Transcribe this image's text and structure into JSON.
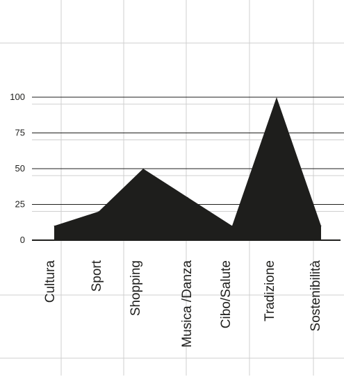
{
  "chart_data": {
    "type": "area",
    "categories": [
      "Cultura",
      "Sport",
      "Shopping",
      "Musica /Danza",
      "Cibo/Salute",
      "Tradizione",
      "Sostenibilità"
    ],
    "values": [
      10,
      20,
      50,
      30,
      10,
      100,
      10
    ],
    "yticks": [
      0,
      25,
      50,
      75,
      100
    ],
    "ylim": [
      0,
      100
    ],
    "grid": true,
    "fill_color": "#1e1e1c",
    "grid_color": "#cfcfcf",
    "axis_color": "#1e1e1c",
    "label_color": "#1e1e1c"
  }
}
